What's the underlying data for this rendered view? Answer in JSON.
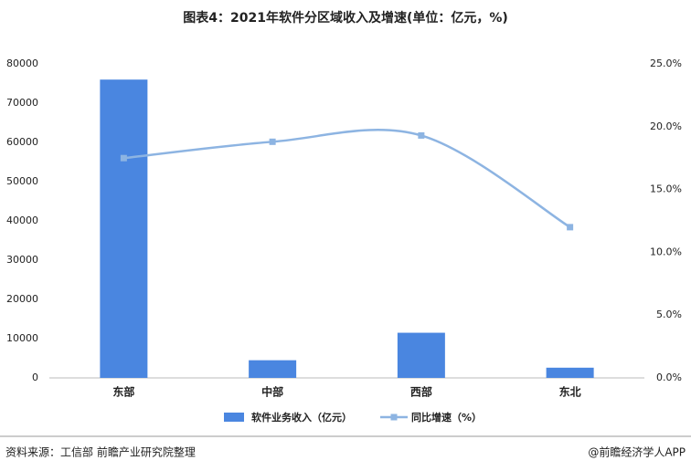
{
  "chart_data": {
    "type": "bar",
    "title": "图表4：2021年软件分区域收入及增速(单位：亿元，%)",
    "categories": [
      "东部",
      "中部",
      "西部",
      "东北"
    ],
    "series": [
      {
        "name": "软件业务收入（亿元）",
        "type": "bar",
        "color": "#4a86e0",
        "values": [
          76000,
          4500,
          11500,
          2600
        ]
      },
      {
        "name": "同比增速（%）",
        "type": "line",
        "axis": "y2",
        "color": "#8db4e2",
        "values": [
          17.5,
          18.8,
          19.3,
          12.0
        ]
      }
    ],
    "ylim": [
      0,
      80000
    ],
    "yticks": [
      0,
      10000,
      20000,
      30000,
      40000,
      50000,
      60000,
      70000,
      80000
    ],
    "y2lim": [
      0,
      25
    ],
    "y2ticks": [
      {
        "value": 0,
        "label": "0.0%"
      },
      {
        "value": 5,
        "label": "5.0%"
      },
      {
        "value": 10,
        "label": "10.0%"
      },
      {
        "value": 15,
        "label": "15.0%"
      },
      {
        "value": 20,
        "label": "20.0%"
      },
      {
        "value": 25,
        "label": "25.0%"
      }
    ],
    "source": "资料来源：工信部 前瞻产业研究院整理",
    "credit": "@前瞻经济学人APP"
  }
}
